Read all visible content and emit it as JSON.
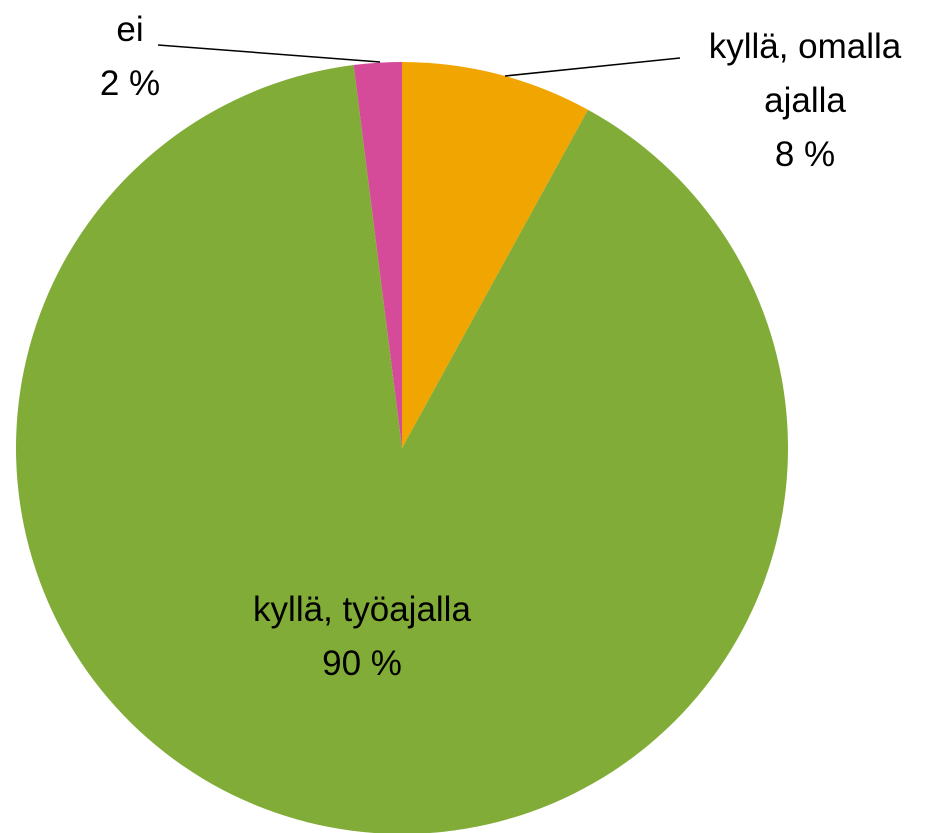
{
  "chart_data": {
    "type": "pie",
    "categories": [
      "kyllä, omalla ajalla",
      "kyllä, työajalla",
      "ei"
    ],
    "values": [
      8,
      90,
      2
    ],
    "value_labels": [
      "8 %",
      "90 %",
      "2 %"
    ],
    "colors": [
      "#f0a500",
      "#82ac38",
      "#d64a9a"
    ]
  }
}
